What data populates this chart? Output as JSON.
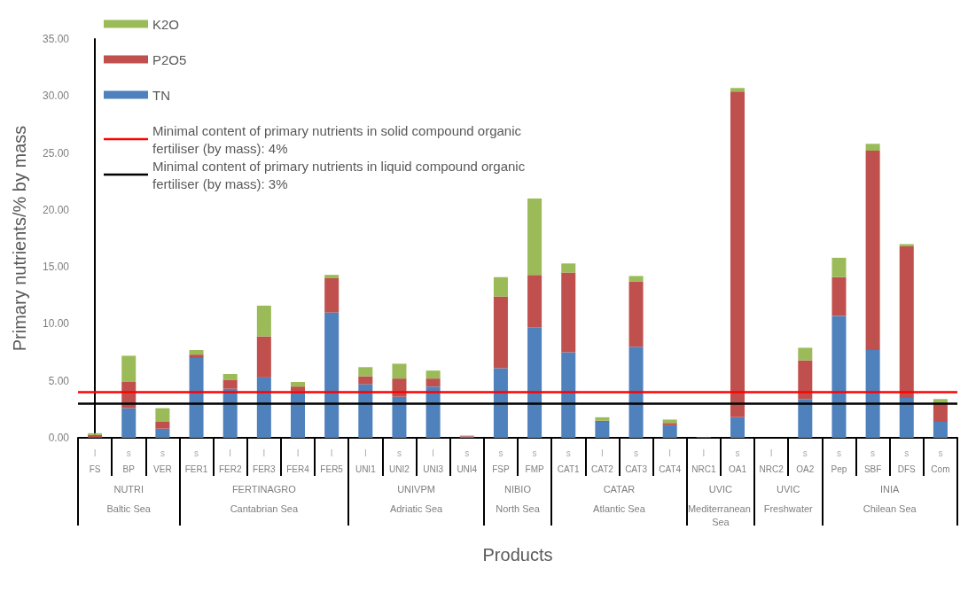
{
  "chart_data": {
    "type": "bar",
    "stacked": true,
    "xlabel": "Products",
    "ylabel": "Primary nutrients/% by mass",
    "categories": [
      "FS",
      "BP",
      "VER",
      "FER1",
      "FER2",
      "FER3",
      "FER4",
      "FER5",
      "UNI1",
      "UNI2",
      "UNI3",
      "UNI4",
      "FSP",
      "FMP",
      "CAT1",
      "CAT2",
      "CAT3",
      "CAT4",
      "NRC1",
      "OA1",
      "NRC2",
      "OA2",
      "Pep",
      "SBF",
      "DFS",
      "Com"
    ],
    "series": [
      {
        "name": "TN",
        "color": "#4f81bd",
        "values": [
          0.05,
          2.6,
          0.8,
          7.0,
          4.3,
          5.3,
          4.1,
          11.0,
          4.7,
          3.6,
          4.5,
          0.1,
          6.1,
          9.7,
          7.5,
          1.4,
          8.0,
          1.1,
          0.05,
          1.8,
          0,
          3.4,
          10.7,
          7.7,
          3.5,
          1.4
        ]
      },
      {
        "name": "P2O5",
        "color": "#c0504d",
        "values": [
          0.2,
          2.3,
          0.6,
          0.3,
          0.8,
          3.6,
          0.4,
          3.0,
          0.7,
          1.6,
          0.7,
          0.05,
          6.3,
          4.6,
          7.0,
          0.1,
          5.7,
          0.2,
          0,
          28.6,
          0,
          3.4,
          3.4,
          17.5,
          13.3,
          1.6
        ]
      },
      {
        "name": "K2O",
        "color": "#9bbb59",
        "values": [
          0.15,
          2.3,
          1.2,
          0.4,
          0.5,
          2.7,
          0.4,
          0.3,
          0.8,
          1.3,
          0.7,
          0.05,
          1.7,
          6.7,
          0.8,
          0.3,
          0.5,
          0.3,
          0,
          0.3,
          0,
          1.1,
          1.7,
          0.6,
          0.2,
          0.4
        ]
      }
    ],
    "ylim": [
      0,
      35
    ],
    "yticks": [
      {
        "value": 0,
        "label": "0.00"
      },
      {
        "value": 5,
        "label": "5.00"
      },
      {
        "value": 10,
        "label": "10.00"
      },
      {
        "value": 15,
        "label": "15.00"
      },
      {
        "value": 20,
        "label": "20.00"
      },
      {
        "value": 25,
        "label": "25.00"
      },
      {
        "value": 30,
        "label": "30.00"
      },
      {
        "value": 35,
        "label": "35.00"
      }
    ],
    "ref_lines": [
      {
        "axis": "y",
        "value": 4,
        "label": "Minimal content of primary nutrients in solid compound organic fertiliser (by mass): 4%",
        "color": "#ff0000"
      },
      {
        "axis": "y",
        "value": 3,
        "label": "Minimal content of primary nutrients in liquid compound organic fertiliser (by mass): 3%",
        "color": "#000000"
      }
    ],
    "legend": "top left",
    "annotations": [
      "l",
      "s",
      "s",
      "s",
      "l",
      "l",
      "l",
      "l",
      "l",
      "s",
      "l",
      "s",
      "s",
      "s",
      "s",
      "l",
      "s",
      "l",
      "l",
      "s",
      "l",
      "s",
      "s",
      "s",
      "s",
      "s",
      "NUTRI",
      "FERTINAGRO",
      "UNIVPM",
      "NIBIO",
      "CATAR",
      "UVIC",
      "UVIC",
      "INIA",
      "Baltic Sea",
      "Cantabrian Sea",
      "Adriatic Sea",
      "North Sea",
      "Atlantic Sea",
      "Mediterranean Sea",
      "Freshwater",
      "Chilean Sea"
    ]
  }
}
